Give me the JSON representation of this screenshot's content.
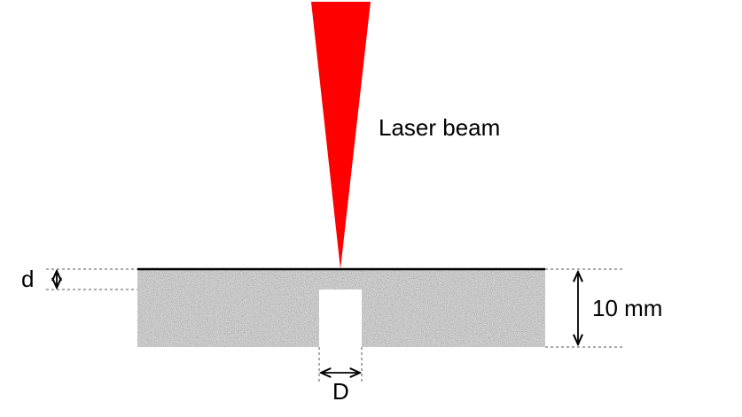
{
  "labels": {
    "beam": "Laser beam",
    "depth": "d",
    "thickness": "10 mm",
    "hole_width": "D"
  },
  "colors": {
    "beam": "#ff0000",
    "material_base": "#a9a9a9",
    "surface_line": "#000000",
    "dimension": "#000000",
    "guide": "#555555"
  }
}
